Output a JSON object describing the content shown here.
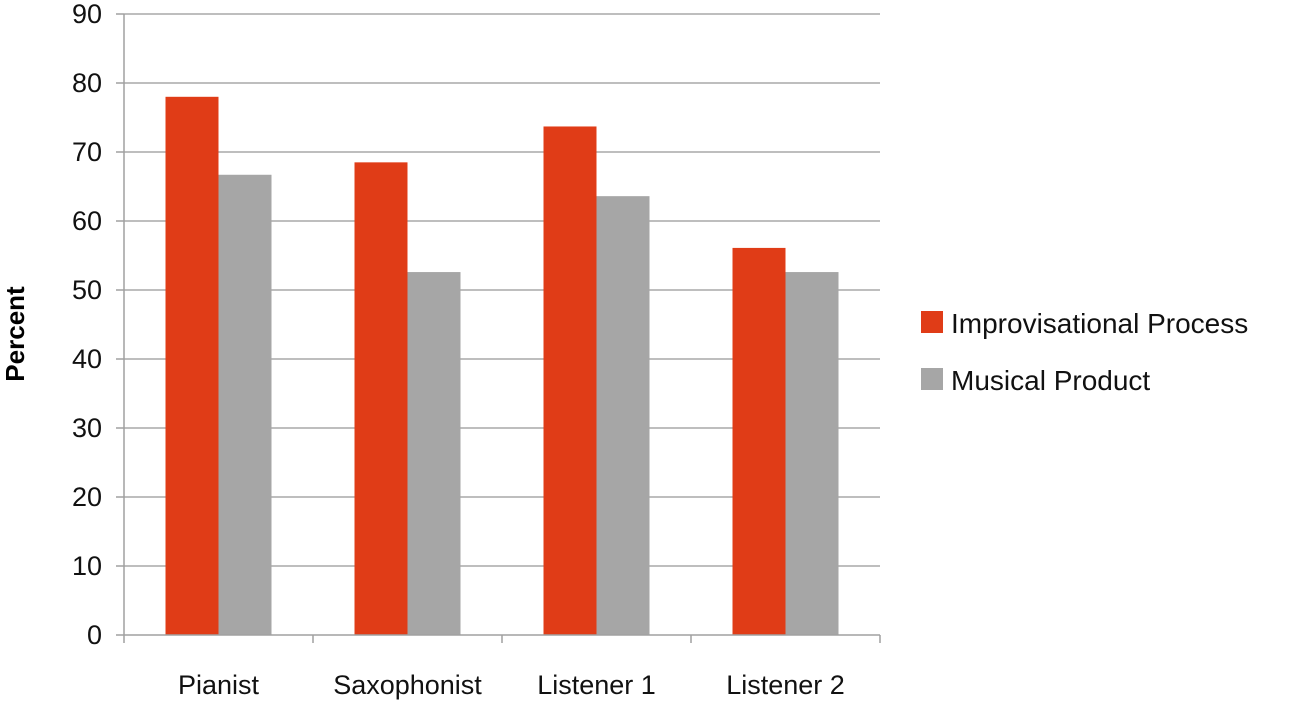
{
  "chart_data": {
    "type": "bar",
    "title": "",
    "xlabel": "",
    "ylabel": "Percent",
    "ylim": [
      0,
      90
    ],
    "yticks": [
      "0",
      "10",
      "20",
      "30",
      "40",
      "50",
      "60",
      "70",
      "80",
      "90"
    ],
    "grid": true,
    "legend_position": "right",
    "categories": [
      "Pianist",
      "Saxophonist",
      "Listener 1",
      "Listener 2"
    ],
    "series": [
      {
        "name": "Improvisational Process",
        "color": "#e03c17",
        "values": [
          78,
          68.5,
          73.7,
          56.1
        ]
      },
      {
        "name": "Musical Product",
        "color": "#a6a6a6",
        "values": [
          66.7,
          52.6,
          63.6,
          52.6
        ]
      }
    ]
  },
  "colors": {
    "grid": "#a8a8a8",
    "axis": "#a0a0a0"
  }
}
